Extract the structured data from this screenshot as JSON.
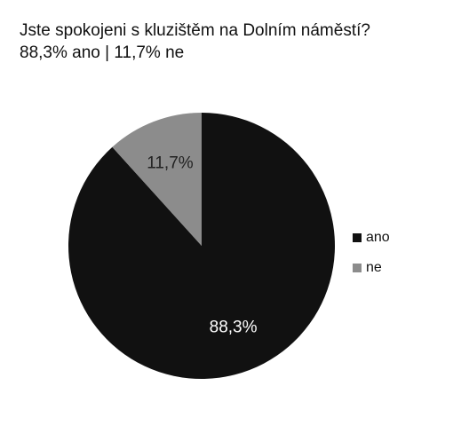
{
  "chart_data": {
    "type": "pie",
    "title": "Jste spokojeni s kluzištěm na Dolním náměstí?",
    "subtitle": "88,3% ano | 11,7% ne",
    "categories": [
      "ano",
      "ne"
    ],
    "values": [
      88.3,
      11.7
    ],
    "value_labels": [
      "88,3%",
      "11,7%"
    ],
    "colors": [
      "#111111",
      "#8c8c8c"
    ],
    "legend": "right"
  }
}
